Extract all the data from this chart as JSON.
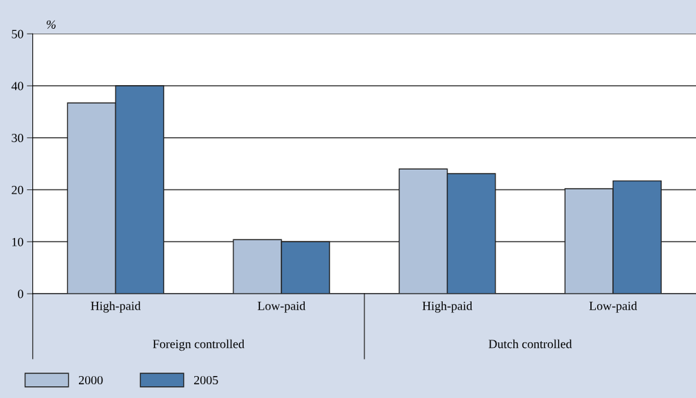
{
  "chart_data": {
    "type": "bar",
    "ylabel": "%",
    "categories": [
      "High-paid",
      "Low-paid",
      "High-paid",
      "Low-paid"
    ],
    "annotations": [
      "Foreign controlled",
      "Dutch controlled"
    ],
    "series": [
      {
        "name": "2000",
        "color": "#afc1d9",
        "values": [
          36.7,
          10.4,
          24.0,
          20.2
        ]
      },
      {
        "name": "2005",
        "color": "#4a7aab",
        "values": [
          40.0,
          10.0,
          23.1,
          21.7
        ]
      }
    ],
    "ylim": [
      0,
      50
    ],
    "yticks": [
      0,
      10,
      20,
      30,
      40,
      50
    ],
    "grid": "y",
    "legend": "bottom left"
  }
}
